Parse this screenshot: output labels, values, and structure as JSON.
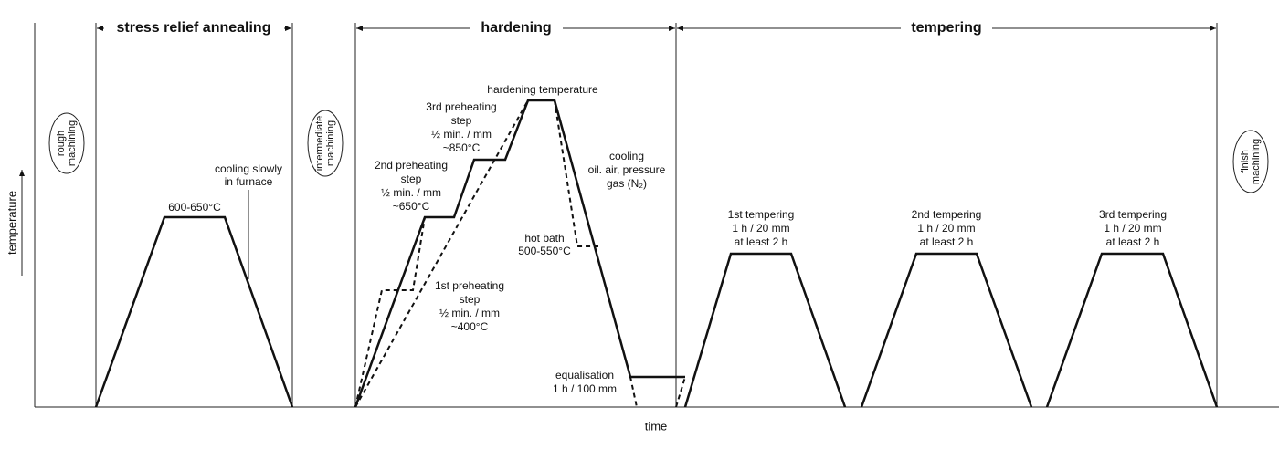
{
  "sections": [
    "stress relief annealing",
    "hardening",
    "tempering"
  ],
  "side_labels": [
    {
      "lines": [
        "rough",
        "machining"
      ]
    },
    {
      "lines": [
        "intermediate",
        "machining"
      ]
    },
    {
      "lines": [
        "finish",
        "machining"
      ]
    }
  ],
  "axes": {
    "y": "temperature",
    "x": "time"
  },
  "annotations": [
    {
      "lines": [
        "600-650°C"
      ]
    },
    {
      "lines": [
        "cooling slowly",
        "in furnace"
      ]
    },
    {
      "lines": [
        "hardening temperature"
      ]
    },
    {
      "lines": [
        "3rd preheating",
        "step",
        "½ min. / mm",
        "~850°C"
      ]
    },
    {
      "lines": [
        "2nd preheating",
        "step",
        "½ min. / mm",
        "~650°C"
      ]
    },
    {
      "lines": [
        "1st preheating",
        "step",
        "½ min. / mm",
        "~400°C"
      ]
    },
    {
      "lines": [
        "cooling",
        "oil. air, pressure",
        "gas (N₂)"
      ]
    },
    {
      "lines": [
        "hot bath",
        "500-550°C"
      ]
    },
    {
      "lines": [
        "equalisation",
        "1 h / 100 mm"
      ]
    },
    {
      "lines": [
        "1st tempering",
        "1 h / 20 mm",
        "at least 2 h"
      ]
    },
    {
      "lines": [
        "2nd tempering",
        "1 h / 20 mm",
        "at least 2 h"
      ]
    },
    {
      "lines": [
        "3rd tempering",
        "1 h / 20 mm",
        "at least 2 h"
      ]
    }
  ]
}
